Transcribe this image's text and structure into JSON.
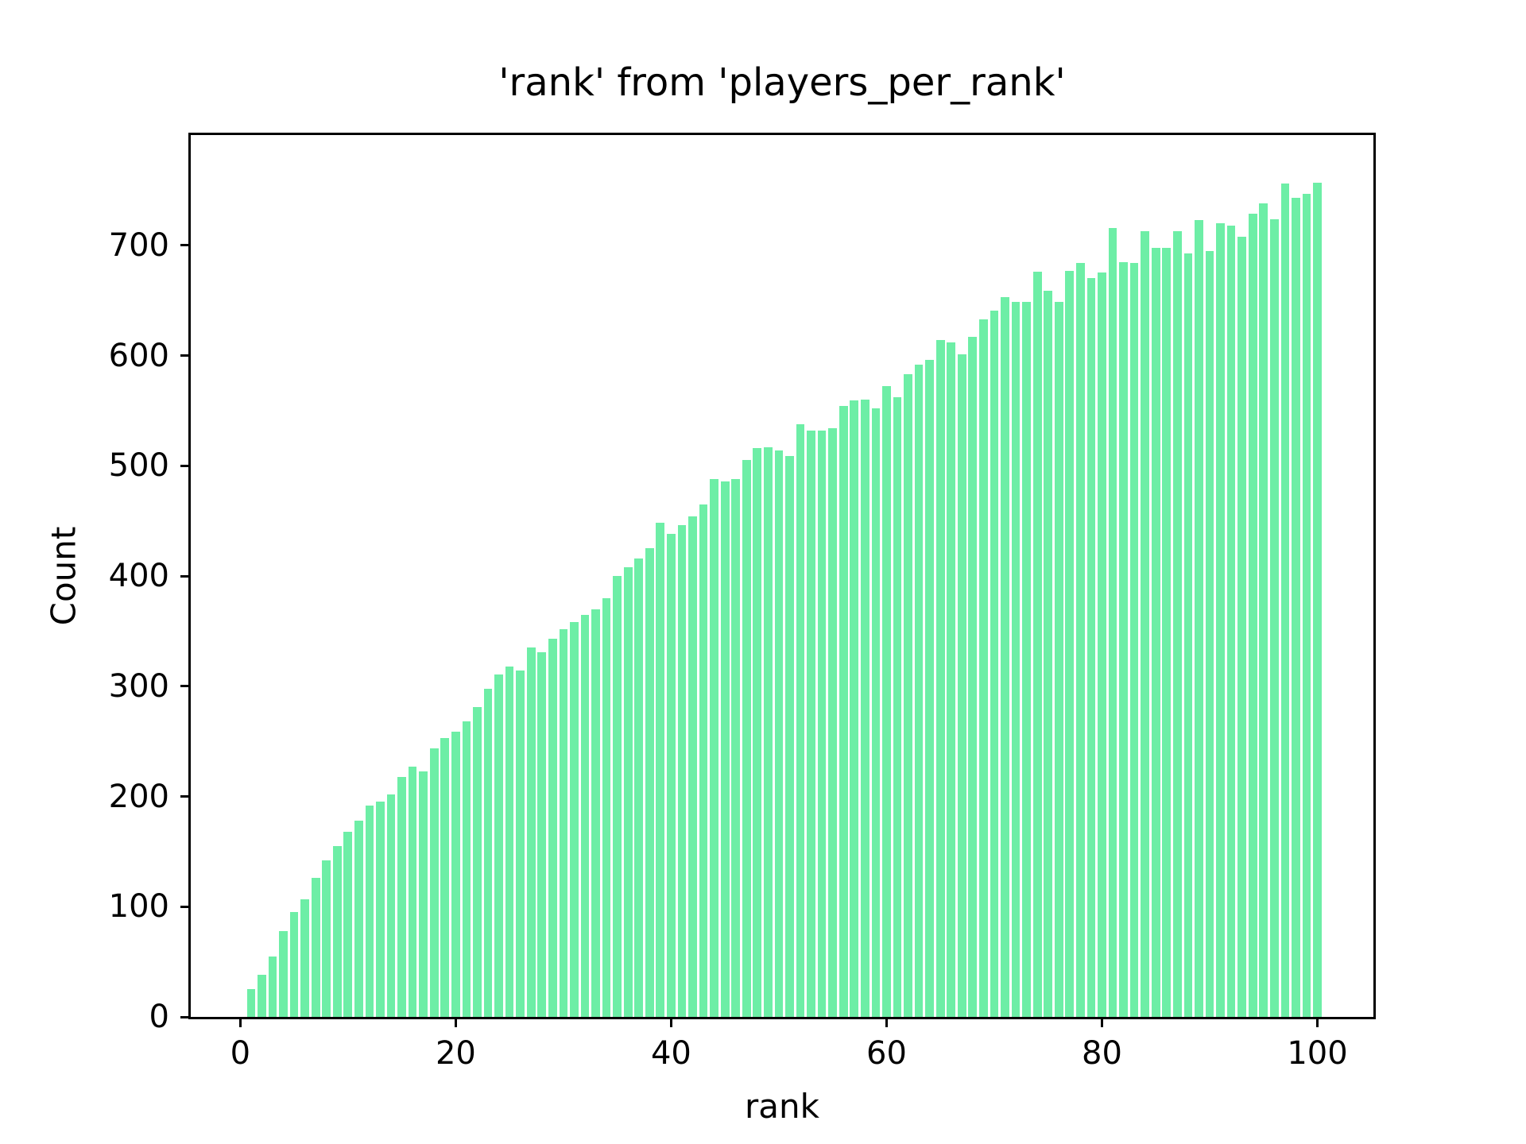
{
  "chart_data": {
    "type": "bar",
    "title": "'rank' from 'players_per_rank'",
    "xlabel": "rank",
    "ylabel": "Count",
    "bar_color": "#6deea6",
    "background_color": "#ffffff",
    "text_color": "#000000",
    "grid": false,
    "legend_position": "none",
    "bar_width_data_units": 0.8,
    "xticks": [
      0,
      20,
      40,
      60,
      80,
      100
    ],
    "yticks": [
      0,
      100,
      200,
      300,
      400,
      500,
      600,
      700
    ],
    "xlim": [
      -4.6,
      105.2
    ],
    "ylim": [
      0,
      800
    ],
    "x": [
      1,
      2,
      3,
      4,
      5,
      6,
      7,
      8,
      9,
      10,
      11,
      12,
      13,
      14,
      15,
      16,
      17,
      18,
      19,
      20,
      21,
      22,
      23,
      24,
      25,
      26,
      27,
      28,
      29,
      30,
      31,
      32,
      33,
      34,
      35,
      36,
      37,
      38,
      39,
      40,
      41,
      42,
      43,
      44,
      45,
      46,
      47,
      48,
      49,
      50,
      51,
      52,
      53,
      54,
      55,
      56,
      57,
      58,
      59,
      60,
      61,
      62,
      63,
      64,
      65,
      66,
      67,
      68,
      69,
      70,
      71,
      72,
      73,
      74,
      75,
      76,
      77,
      78,
      79,
      80,
      81,
      82,
      83,
      84,
      85,
      86,
      87,
      88,
      89,
      90,
      91,
      92,
      93,
      94,
      95,
      96,
      97,
      98,
      99,
      100
    ],
    "values": [
      25,
      38,
      55,
      78,
      95,
      107,
      126,
      142,
      155,
      168,
      178,
      192,
      195,
      202,
      218,
      227,
      223,
      244,
      253,
      259,
      268,
      281,
      298,
      311,
      318,
      314,
      335,
      331,
      343,
      352,
      358,
      365,
      370,
      380,
      400,
      408,
      416,
      425,
      448,
      438,
      446,
      454,
      465,
      488,
      486,
      488,
      505,
      516,
      517,
      514,
      509,
      538,
      532,
      532,
      534,
      554,
      559,
      560,
      552,
      572,
      562,
      583,
      592,
      596,
      614,
      612,
      601,
      617,
      633,
      641,
      653,
      649,
      649,
      676,
      659,
      649,
      677,
      684,
      670,
      675,
      716,
      685,
      684,
      713,
      698,
      698,
      713,
      693,
      723,
      695,
      720,
      718,
      708,
      729,
      738,
      724,
      756,
      743,
      747,
      757
    ]
  }
}
